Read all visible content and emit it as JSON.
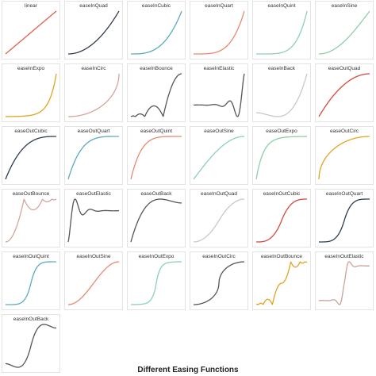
{
  "title": "Different Easing Functions",
  "chart_data": [
    {
      "type": "line",
      "title": "linear",
      "color": "#e0604a",
      "easing": "linear"
    },
    {
      "type": "line",
      "title": "easeInQuad",
      "color": "#2e3d4f",
      "easing": "easeInQuad"
    },
    {
      "type": "line",
      "title": "easeInCubic",
      "color": "#5aaac0",
      "easing": "easeInCubic"
    },
    {
      "type": "line",
      "title": "easeInQuart",
      "color": "#e8896e",
      "easing": "easeInQuart"
    },
    {
      "type": "line",
      "title": "easeInQuint",
      "color": "#8ccfbe",
      "easing": "easeInQuint"
    },
    {
      "type": "line",
      "title": "easeInSine",
      "color": "#8ccfa8",
      "easing": "easeInSine"
    },
    {
      "type": "line",
      "title": "easeInExpo",
      "color": "#e3a321",
      "easing": "easeInExpo"
    },
    {
      "type": "line",
      "title": "easeInCirc",
      "color": "#d3a59b",
      "easing": "easeInCirc"
    },
    {
      "type": "line",
      "title": "easeInBounce",
      "color": "#555555",
      "easing": "easeInBounce"
    },
    {
      "type": "line",
      "title": "easeInElastic",
      "color": "#555555",
      "easing": "easeInElastic"
    },
    {
      "type": "line",
      "title": "easeInBack",
      "color": "#c8c8c8",
      "easing": "easeInBack"
    },
    {
      "type": "line",
      "title": "easeOutQuad",
      "color": "#d44a3c",
      "easing": "easeOutQuad"
    },
    {
      "type": "line",
      "title": "easeOutCubic",
      "color": "#2e3d4f",
      "easing": "easeOutCubic"
    },
    {
      "type": "line",
      "title": "easeOutQuart",
      "color": "#5aaac0",
      "easing": "easeOutQuart"
    },
    {
      "type": "line",
      "title": "easeOutQuint",
      "color": "#e8896e",
      "easing": "easeOutQuint"
    },
    {
      "type": "line",
      "title": "easeOutSine",
      "color": "#8ccfbe",
      "easing": "easeOutSine"
    },
    {
      "type": "line",
      "title": "easeOutExpo",
      "color": "#8ccfa8",
      "easing": "easeOutExpo"
    },
    {
      "type": "line",
      "title": "easeOutCirc",
      "color": "#e3a321",
      "easing": "easeOutCirc"
    },
    {
      "type": "line",
      "title": "easeOutBounce",
      "color": "#d3a59b",
      "easing": "easeOutBounce"
    },
    {
      "type": "line",
      "title": "easeOutElastic",
      "color": "#555555",
      "easing": "easeOutElastic"
    },
    {
      "type": "line",
      "title": "easeOutBack",
      "color": "#555555",
      "easing": "easeOutBack"
    },
    {
      "type": "line",
      "title": "easeInOutQuad",
      "color": "#c8c8c8",
      "easing": "easeInOutQuad"
    },
    {
      "type": "line",
      "title": "easeInOutCubic",
      "color": "#d44a3c",
      "easing": "easeInOutCubic"
    },
    {
      "type": "line",
      "title": "easeInOutQuart",
      "color": "#2e3d4f",
      "easing": "easeInOutQuart"
    },
    {
      "type": "line",
      "title": "easeInOutQuint",
      "color": "#5aaac0",
      "easing": "easeInOutQuint"
    },
    {
      "type": "line",
      "title": "easeInOutSine",
      "color": "#e8896e",
      "easing": "easeInOutSine"
    },
    {
      "type": "line",
      "title": "easeInOutExpo",
      "color": "#8ccfbe",
      "easing": "easeInOutExpo"
    },
    {
      "type": "line",
      "title": "easeInOutCirc",
      "color": "#555555",
      "easing": "easeInOutCirc"
    },
    {
      "type": "line",
      "title": "easeInOutBounce",
      "color": "#e3a321",
      "easing": "easeInOutBounce"
    },
    {
      "type": "line",
      "title": "easeInOutElastic",
      "color": "#c9a39a",
      "easing": "easeInOutElastic"
    },
    {
      "type": "line",
      "title": "easeInOutBack",
      "color": "#555555",
      "easing": "easeInOutBack"
    }
  ]
}
